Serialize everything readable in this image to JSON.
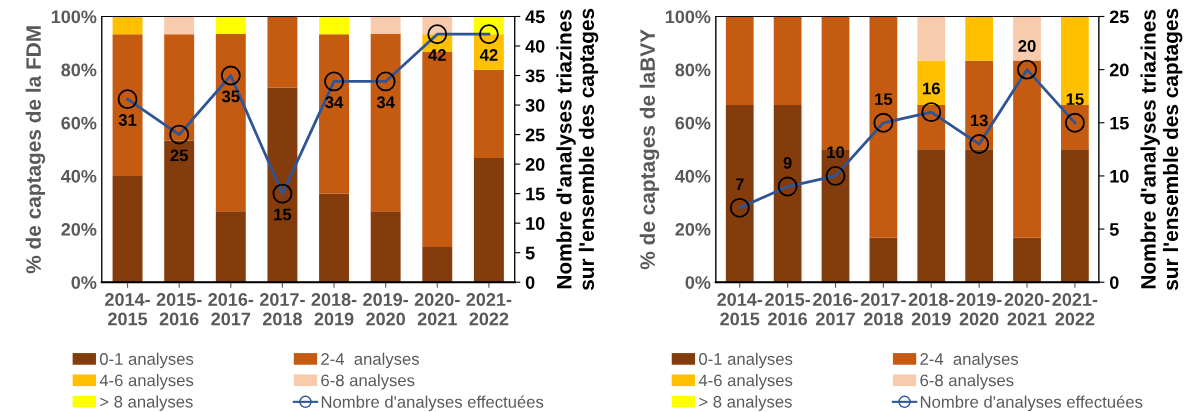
{
  "chart_data": [
    {
      "type": "bar",
      "stacked": true,
      "categories": [
        "2014-\n2015",
        "2015-\n2016",
        "2016-\n2017",
        "2017-\n2018",
        "2018-\n2019",
        "2019-\n2020",
        "2020-\n2021",
        "2021-\n2022"
      ],
      "ylabel": "% de captages de la FDM",
      "y2label": "Nombre d'analyses triazines\nsur l'ensemble des captages",
      "ylim": [
        0,
        100
      ],
      "yticks": [
        {
          "value": 0,
          "label": "0%"
        },
        {
          "value": 20,
          "label": "20%"
        },
        {
          "value": 40,
          "label": "40%"
        },
        {
          "value": 60,
          "label": "60%"
        },
        {
          "value": 80,
          "label": "80%"
        },
        {
          "value": 100,
          "label": "100%"
        }
      ],
      "y2lim": [
        0,
        45
      ],
      "y2ticks": [
        0,
        5,
        10,
        15,
        20,
        25,
        30,
        35,
        40,
        45
      ],
      "legend": "bottom",
      "series": [
        {
          "name": "0-1 analyses",
          "color": "#843c0c",
          "values": [
            40,
            53.3,
            26.7,
            73.3,
            33.3,
            26.7,
            13.3,
            46.7
          ]
        },
        {
          "name": "2-4  analyses",
          "color": "#c55a11",
          "values": [
            53.3,
            40,
            66.7,
            26.7,
            60,
            66.7,
            73.3,
            33.3
          ]
        },
        {
          "name": "4-6 analyses",
          "color": "#ffc000",
          "values": [
            6.7,
            0,
            0,
            0,
            0,
            0,
            6.7,
            13.3
          ]
        },
        {
          "name": "6-8 analyses",
          "color": "#f8cbad",
          "values": [
            0,
            6.7,
            0,
            0,
            0,
            6.7,
            6.7,
            0
          ]
        },
        {
          "name": "> 8 analyses",
          "color": "#ffff00",
          "values": [
            0,
            0,
            6.7,
            0,
            6.7,
            0,
            0,
            6.7
          ]
        },
        {
          "name": "Nombre d'analyses effectuées",
          "type": "line",
          "axis": "y2",
          "marker": "circle",
          "color": "#2f5597",
          "values": [
            31,
            25,
            35,
            15,
            34,
            34,
            42,
            42
          ],
          "value_labels": [
            "31",
            "25",
            "35",
            "15",
            "34",
            "34",
            "42",
            "42"
          ]
        }
      ]
    },
    {
      "type": "bar",
      "stacked": true,
      "categories": [
        "2014-\n2015",
        "2015-\n2016",
        "2016-\n2017",
        "2017-\n2018",
        "2018-\n2019",
        "2019-\n2020",
        "2020-\n2021",
        "2021-\n2022"
      ],
      "ylabel": "% de captages de laBVY",
      "y2label": "Nombre d'analyses triazines\nsur l'ensemble des captages",
      "ylim": [
        0,
        100
      ],
      "yticks": [
        {
          "value": 0,
          "label": "0%"
        },
        {
          "value": 20,
          "label": "20%"
        },
        {
          "value": 40,
          "label": "40%"
        },
        {
          "value": 60,
          "label": "60%"
        },
        {
          "value": 80,
          "label": "80%"
        },
        {
          "value": 100,
          "label": "100%"
        }
      ],
      "y2lim": [
        0,
        25
      ],
      "y2ticks": [
        0,
        5,
        10,
        15,
        20,
        25
      ],
      "legend": "bottom",
      "series": [
        {
          "name": "0-1 analyses",
          "color": "#843c0c",
          "values": [
            66.7,
            66.7,
            50,
            16.7,
            50,
            50,
            16.7,
            50
          ]
        },
        {
          "name": "2-4  analyses",
          "color": "#c55a11",
          "values": [
            33.3,
            33.3,
            50,
            83.3,
            16.7,
            33.3,
            66.7,
            16.7
          ]
        },
        {
          "name": "4-6 analyses",
          "color": "#ffc000",
          "values": [
            0,
            0,
            0,
            0,
            16.7,
            16.7,
            0,
            33.3
          ]
        },
        {
          "name": "6-8 analyses",
          "color": "#f8cbad",
          "values": [
            0,
            0,
            0,
            0,
            16.7,
            0,
            16.7,
            0
          ]
        },
        {
          "name": "> 8 analyses",
          "color": "#ffff00",
          "values": [
            0,
            0,
            0,
            0,
            0,
            0,
            0,
            0
          ]
        },
        {
          "name": "Nombre d'analyses effectuées",
          "type": "line",
          "axis": "y2",
          "marker": "circle",
          "color": "#2f5597",
          "values": [
            7,
            9,
            10,
            15,
            16,
            13,
            20,
            15
          ],
          "value_labels": [
            "7",
            "9",
            "10",
            "15",
            "16",
            "13",
            "20",
            "15"
          ]
        }
      ]
    }
  ]
}
